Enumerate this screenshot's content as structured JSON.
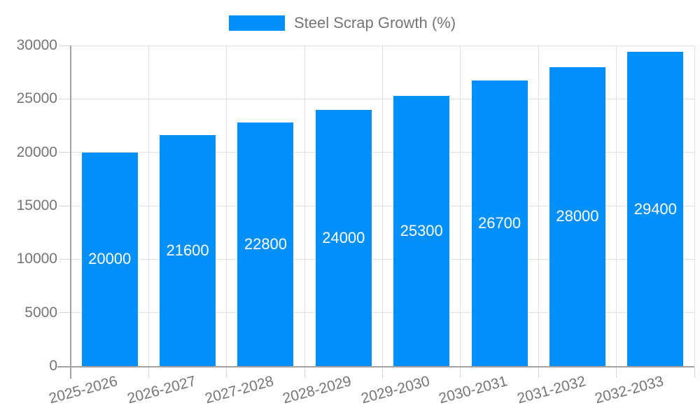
{
  "chart_data": {
    "type": "bar",
    "title": "",
    "xlabel": "",
    "ylabel": "",
    "legend": {
      "label": "Steel Scrap Growth (%)",
      "position": "top"
    },
    "categories": [
      "2025-2026",
      "2026-2027",
      "2027-2028",
      "2028-2029",
      "2029-2030",
      "2030-2031",
      "2031-2032",
      "2032-2033"
    ],
    "series": [
      {
        "name": "Steel Scrap Growth (%)",
        "values": [
          20000,
          21600,
          22800,
          24000,
          25300,
          26700,
          28000,
          29400
        ]
      }
    ],
    "ylim": [
      0,
      30000
    ],
    "yticks": [
      0,
      5000,
      10000,
      15000,
      20000,
      25000,
      30000
    ],
    "grid": true,
    "x_label_rotation_deg": -15,
    "data_labels_shown": true,
    "data_label_position": "middle"
  },
  "colors": {
    "bar": "#008FFB",
    "grid": "#e0e0e0",
    "tick": "#d6d6d6",
    "axis": "#a3a3a3",
    "text": "#757575",
    "data_label": "#ffffff",
    "background": "#ffffff"
  }
}
